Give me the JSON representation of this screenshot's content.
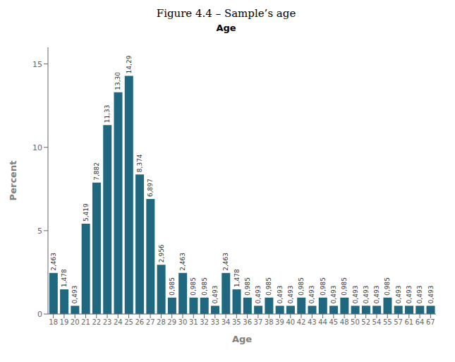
{
  "chart_data": {
    "type": "bar",
    "title": "Figure 4.4 – Sample’s age",
    "subtitle": "Age",
    "xlabel": "Age",
    "ylabel": "Percent",
    "color": "#1f6880",
    "categories": [
      "18",
      "19",
      "20",
      "21",
      "22",
      "23",
      "24",
      "25",
      "26",
      "27",
      "28",
      "29",
      "30",
      "31",
      "32",
      "33",
      "34",
      "35",
      "36",
      "37",
      "38",
      "39",
      "40",
      "42",
      "43",
      "44",
      "45",
      "48",
      "50",
      "52",
      "54",
      "55",
      "57",
      "61",
      "64",
      "67"
    ],
    "values": [
      2.463,
      1.478,
      0.493,
      5.419,
      7.882,
      11.33,
      13.3,
      14.29,
      8.374,
      6.897,
      2.956,
      0.985,
      2.463,
      0.985,
      0.985,
      0.493,
      2.463,
      1.478,
      0.985,
      0.493,
      0.985,
      0.493,
      0.493,
      0.985,
      0.493,
      0.985,
      0.493,
      0.985,
      0.493,
      0.493,
      0.493,
      0.985,
      0.493,
      0.493,
      0.493,
      0.493
    ],
    "value_labels": [
      "2,463",
      "1,478",
      "0,493",
      "5,419",
      "7,882",
      "11,33",
      "13,30",
      "14,29",
      "8,374",
      "6,897",
      "2,956",
      "0,985",
      "2,463",
      "0,985",
      "0,985",
      "0,493",
      "2,463",
      "1,478",
      "0,985",
      "0,493",
      "0,985",
      "0,493",
      "0,493",
      "0,985",
      "0,493",
      "0,985",
      "0,493",
      "0,985",
      "0,493",
      "0,493",
      "0,493",
      "0,985",
      "0,493",
      "0,493",
      "0,493",
      "0,493"
    ],
    "ylim": [
      0,
      16
    ],
    "yticks": [
      0,
      5,
      10,
      15
    ],
    "grid": false
  }
}
